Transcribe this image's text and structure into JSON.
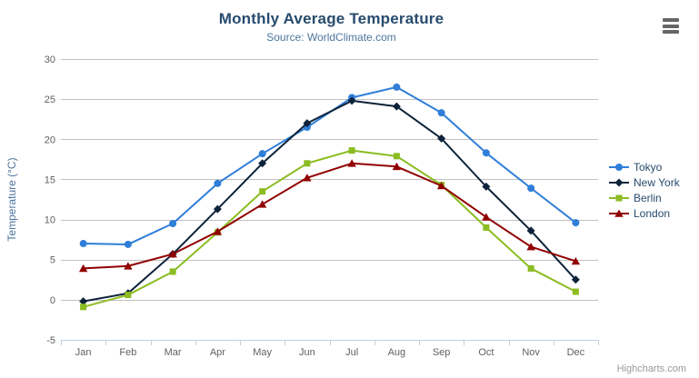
{
  "credits": "Highcharts.com",
  "export_menu": {
    "icon": "hamburger-menu-icon"
  },
  "colors": {
    "title": "#274b6d",
    "subtitle": "#4d759e",
    "axis_title": "#4d759e",
    "tick_label": "#606060",
    "legend_text": "#274b6d",
    "grid_line": "#c0c0c0",
    "axis_line": "#c0d0e0",
    "credits": "#999999",
    "menu_icon": "#666666"
  },
  "chart_data": {
    "type": "line",
    "title": "Monthly Average Temperature",
    "subtitle": "Source: WorldClimate.com",
    "xlabel": "",
    "ylabel": "Temperature (°C)",
    "categories": [
      "Jan",
      "Feb",
      "Mar",
      "Apr",
      "May",
      "Jun",
      "Jul",
      "Aug",
      "Sep",
      "Oct",
      "Nov",
      "Dec"
    ],
    "ylim": [
      -5,
      30
    ],
    "ytick_step": 5,
    "grid": true,
    "legend_position": "right",
    "series": [
      {
        "name": "Tokyo",
        "color": "#2f7ed8",
        "marker": "circle",
        "values": [
          7.0,
          6.9,
          9.5,
          14.5,
          18.2,
          21.5,
          25.2,
          26.5,
          23.3,
          18.3,
          13.9,
          9.6
        ]
      },
      {
        "name": "New York",
        "color": "#0d233a",
        "marker": "diamond",
        "values": [
          -0.2,
          0.8,
          5.7,
          11.3,
          17.0,
          22.0,
          24.8,
          24.1,
          20.1,
          14.1,
          8.6,
          2.5
        ]
      },
      {
        "name": "Berlin",
        "color": "#8bbc21",
        "marker": "square",
        "values": [
          -0.9,
          0.6,
          3.5,
          8.4,
          13.5,
          17.0,
          18.6,
          17.9,
          14.3,
          9.0,
          3.9,
          1.0
        ]
      },
      {
        "name": "London",
        "color": "#910000",
        "marker": "triangle",
        "values": [
          3.9,
          4.2,
          5.7,
          8.5,
          11.9,
          15.2,
          17.0,
          16.6,
          14.2,
          10.3,
          6.6,
          4.8
        ]
      }
    ]
  }
}
